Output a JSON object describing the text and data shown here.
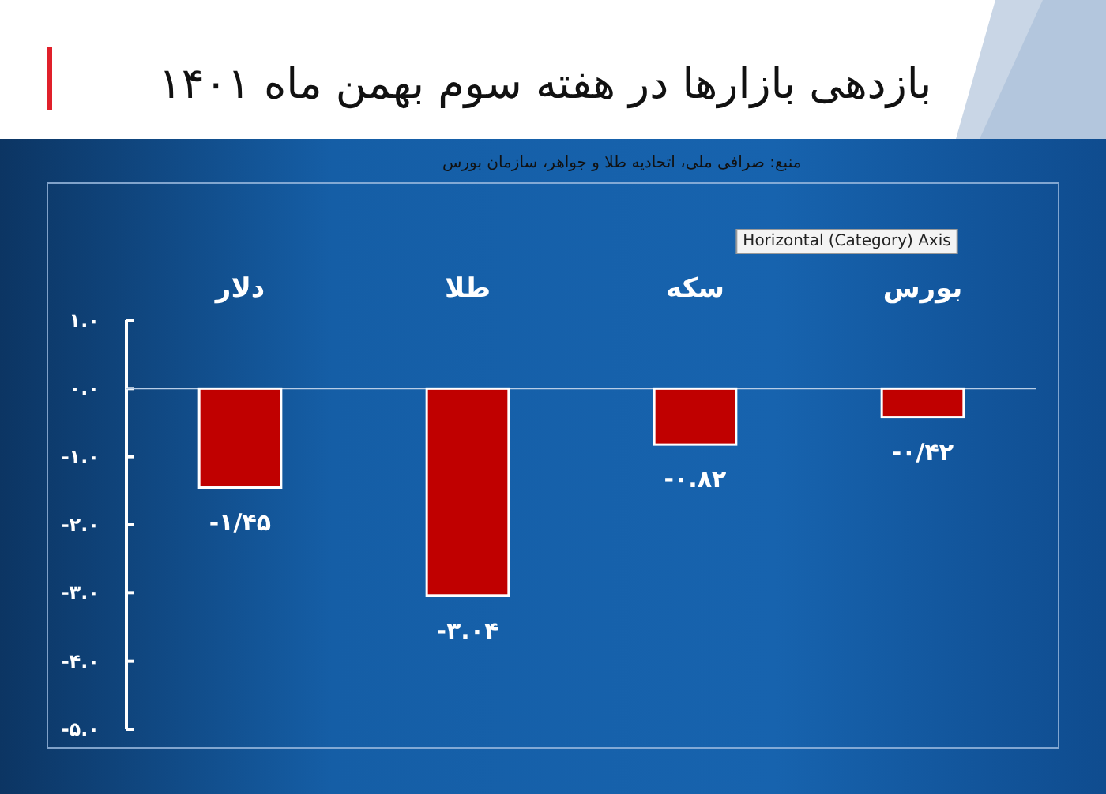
{
  "chart_data": {
    "type": "bar",
    "title": "بازدهی بازارها در هفته سوم بهمن ماه ۱۴۰۱",
    "annotations": [
      "منبع: صرافی ملی، اتحادیه طلا و جواهر، سازمان بورس",
      "Horizontal (Category) Axis"
    ],
    "categories": [
      "دلار",
      "طلا",
      "سکه",
      "بورس"
    ],
    "values": [
      -1.45,
      -3.04,
      -0.82,
      -0.42
    ],
    "value_labels": [
      "-۱/۴۵",
      "-۳.۰۴",
      "-۰.۸۲",
      "-۰/۴۲"
    ],
    "color": "#c00000",
    "ylim": [
      -5,
      1
    ],
    "yticks": [
      {
        "value": 1,
        "label": "۱.۰"
      },
      {
        "value": 0,
        "label": "۰.۰"
      },
      {
        "value": -1,
        "label": "-۱.۰"
      },
      {
        "value": -2,
        "label": "-۲.۰"
      },
      {
        "value": -3,
        "label": "-۳.۰"
      },
      {
        "value": -4,
        "label": "-۴.۰"
      },
      {
        "value": -5,
        "label": "-۵.۰"
      }
    ],
    "ref_lines": [
      {
        "axis": "y",
        "value": 0,
        "color": "#b8cde6"
      }
    ],
    "grid": false
  }
}
